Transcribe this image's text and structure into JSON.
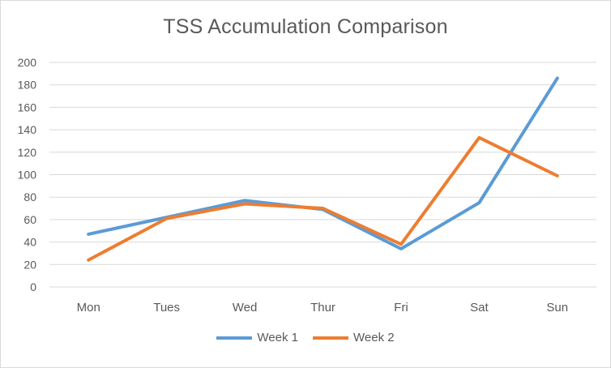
{
  "chart_data": {
    "type": "line",
    "title": "TSS Accumulation Comparison",
    "xlabel": "",
    "ylabel": "",
    "categories": [
      "Mon",
      "Tues",
      "Wed",
      "Thur",
      "Fri",
      "Sat",
      "Sun"
    ],
    "ylim": [
      0,
      200
    ],
    "yticks": [
      0,
      20,
      40,
      60,
      80,
      100,
      120,
      140,
      160,
      180,
      200
    ],
    "grid": true,
    "legend_position": "bottom",
    "series": [
      {
        "name": "Week 1",
        "color": "#5b9bd5",
        "values": [
          47,
          62,
          77,
          69,
          34,
          75,
          186
        ]
      },
      {
        "name": "Week 2",
        "color": "#ed7d31",
        "values": [
          24,
          61,
          74,
          70,
          38,
          133,
          99
        ]
      }
    ]
  }
}
